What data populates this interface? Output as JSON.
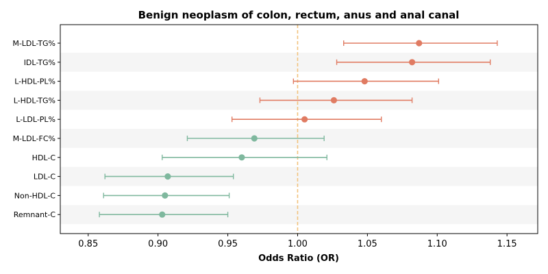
{
  "chart_data": {
    "type": "forest",
    "title": "Benign neoplasm of colon, rectum, anus and anal canal",
    "xlabel": "Odds Ratio (OR)",
    "ylabel": "",
    "xlim": [
      0.83,
      1.172
    ],
    "xticks": [
      0.85,
      0.9,
      0.95,
      1.0,
      1.05,
      1.1,
      1.15
    ],
    "xtick_labels": [
      "0.85",
      "0.90",
      "0.95",
      "1.00",
      "1.05",
      "1.10",
      "1.15"
    ],
    "reference_line": 1.0,
    "grid": false,
    "colors": {
      "positive": "#e07b62",
      "negative": "#7fb89e",
      "reference": "#f2c27c",
      "band": "#f5f5f5",
      "axis": "#000000"
    },
    "rows": [
      {
        "label": "M-LDL-TG%",
        "or": 1.087,
        "lower": 1.033,
        "upper": 1.143,
        "group": "positive"
      },
      {
        "label": "IDL-TG%",
        "or": 1.082,
        "lower": 1.028,
        "upper": 1.138,
        "group": "positive"
      },
      {
        "label": "L-HDL-PL%",
        "or": 1.048,
        "lower": 0.997,
        "upper": 1.101,
        "group": "positive"
      },
      {
        "label": "L-HDL-TG%",
        "or": 1.026,
        "lower": 0.973,
        "upper": 1.082,
        "group": "positive"
      },
      {
        "label": "L-LDL-PL%",
        "or": 1.005,
        "lower": 0.953,
        "upper": 1.06,
        "group": "positive"
      },
      {
        "label": "M-LDL-FC%",
        "or": 0.969,
        "lower": 0.921,
        "upper": 1.019,
        "group": "negative"
      },
      {
        "label": "HDL-C",
        "or": 0.96,
        "lower": 0.903,
        "upper": 1.021,
        "group": "negative"
      },
      {
        "label": "LDL-C",
        "or": 0.907,
        "lower": 0.862,
        "upper": 0.954,
        "group": "negative"
      },
      {
        "label": "Non-HDL-C",
        "or": 0.905,
        "lower": 0.861,
        "upper": 0.951,
        "group": "negative"
      },
      {
        "label": "Remnant-C",
        "or": 0.903,
        "lower": 0.858,
        "upper": 0.95,
        "group": "negative"
      }
    ]
  }
}
